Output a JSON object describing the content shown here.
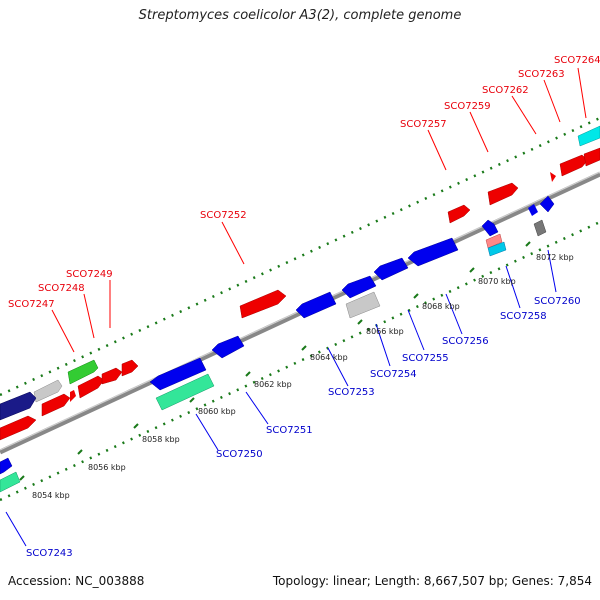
{
  "title": "Streptomyces coelicolor A3(2), complete genome",
  "accession": "Accession: NC_003888",
  "topology": "Topology: linear; Length: 8,667,507 bp; Genes: 7,854",
  "colors": {
    "forward_label": "#e8000b",
    "reverse_label": "#0000cc",
    "forward_gene": "#ee0000",
    "reverse_gene": "#0000ee",
    "tick": "#1a7a1a",
    "backbone": "#888888"
  },
  "scale_labels": [
    "8054 kbp",
    "8056 kbp",
    "8058 kbp",
    "8060 kbp",
    "8062 kbp",
    "8064 kbp",
    "8066 kbp",
    "8068 kbp",
    "8070 kbp",
    "8072 kbp"
  ],
  "forward_genes": [
    "SCO7247",
    "SCO7248",
    "SCO7249",
    "SCO7252",
    "SCO7257",
    "SCO7259",
    "SCO7262",
    "SCO7263",
    "SCO7264"
  ],
  "reverse_genes": [
    "SCO7243",
    "SCO7250",
    "SCO7251",
    "SCO7253",
    "SCO7254",
    "SCO7255",
    "SCO7256",
    "SCO7258",
    "SCO7260"
  ]
}
